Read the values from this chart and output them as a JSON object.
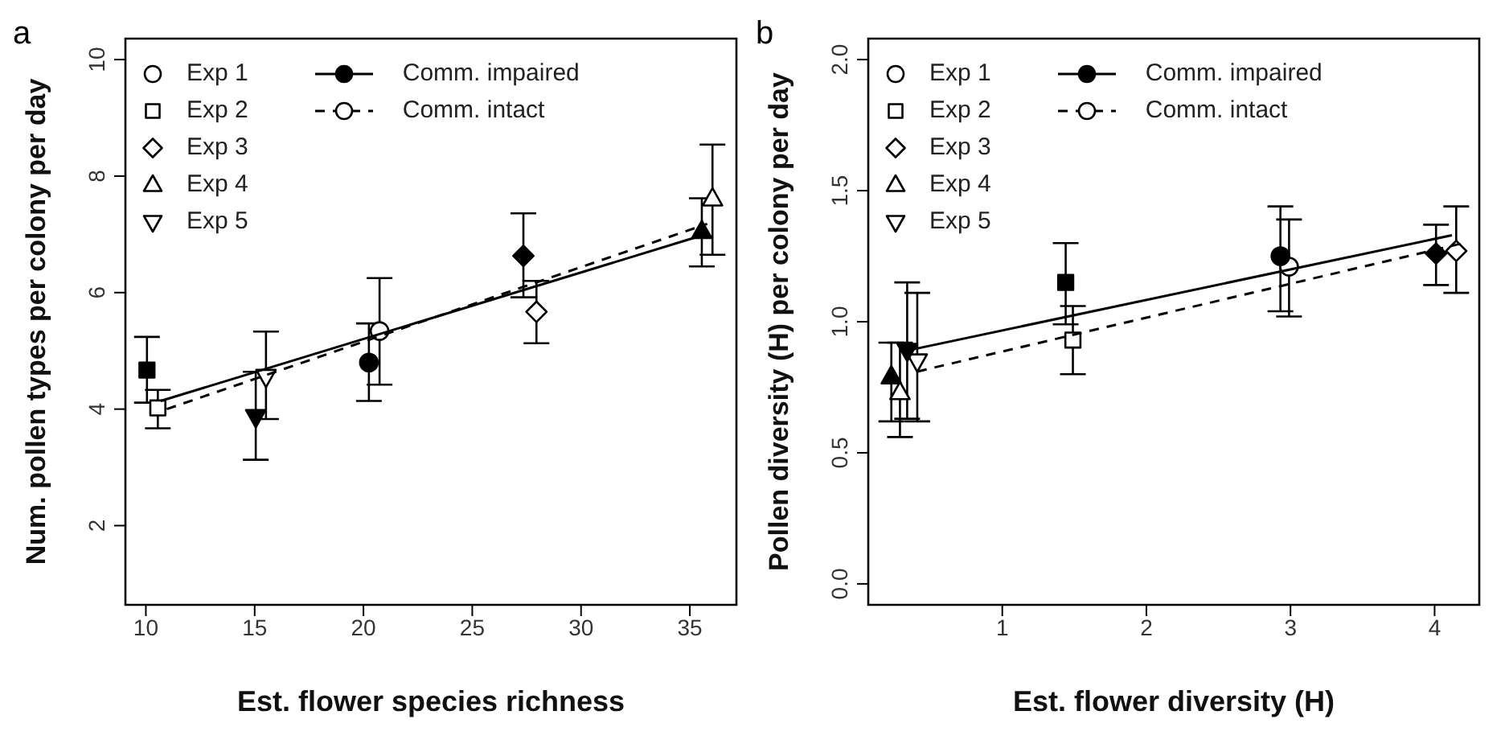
{
  "chart_data": [
    {
      "type": "scatter",
      "title": "a",
      "xlabel": "Est. flower species richness",
      "ylabel": "Num. pollen types per colony per day",
      "xlim": [
        9.06,
        37.14
      ],
      "ylim": [
        0.64,
        10.36
      ],
      "xticks": [
        10,
        15,
        20,
        25,
        30,
        35
      ],
      "yticks": [
        2,
        4,
        6,
        8,
        10
      ],
      "legend": "top",
      "series": [
        {
          "type": "scatter",
          "name": "Exp 1",
          "marker": "circle",
          "color": "#ffffff",
          "x": [
            20.74
          ],
          "values": [
            5.34
          ],
          "errors": [
            [
              4.42,
              6.25
            ]
          ]
        },
        {
          "type": "scatter",
          "name": "Exp 2",
          "marker": "square",
          "color": "#ffffff",
          "x": [
            10.55
          ],
          "values": [
            4.02
          ],
          "errors": [
            [
              3.67,
              4.33
            ]
          ]
        },
        {
          "type": "scatter",
          "name": "Exp 3",
          "marker": "diamond",
          "color": "#ffffff",
          "x": [
            27.95
          ],
          "values": [
            5.67
          ],
          "errors": [
            [
              5.13,
              6.2
            ]
          ]
        },
        {
          "type": "scatter",
          "name": "Exp 4",
          "marker": "triangle",
          "color": "#ffffff",
          "x": [
            36.04
          ],
          "values": [
            7.61
          ],
          "errors": [
            [
              6.65,
              8.54
            ]
          ]
        },
        {
          "type": "scatter",
          "name": "Exp 5",
          "marker": "triangle-down",
          "color": "#ffffff",
          "x": [
            15.52
          ],
          "values": [
            4.56
          ],
          "errors": [
            [
              3.83,
              5.33
            ]
          ]
        },
        {
          "type": "scatter",
          "marker": "circle",
          "color": "#000000",
          "x": [
            20.25
          ],
          "values": [
            4.8
          ],
          "errors": [
            [
              4.14,
              5.47
            ]
          ]
        },
        {
          "type": "scatter",
          "marker": "square",
          "color": "#000000",
          "x": [
            10.05
          ],
          "values": [
            4.67
          ],
          "errors": [
            [
              4.11,
              5.24
            ]
          ]
        },
        {
          "type": "scatter",
          "marker": "diamond",
          "color": "#000000",
          "x": [
            27.35
          ],
          "values": [
            6.63
          ],
          "errors": [
            [
              5.92,
              7.36
            ]
          ]
        },
        {
          "type": "scatter",
          "marker": "triangle",
          "color": "#000000",
          "x": [
            35.55
          ],
          "values": [
            7.05
          ],
          "errors": [
            [
              6.45,
              7.62
            ]
          ]
        },
        {
          "type": "scatter",
          "marker": "triangle-down",
          "color": "#000000",
          "x": [
            15.05
          ],
          "values": [
            3.87
          ],
          "errors": [
            [
              3.13,
              4.64
            ]
          ]
        },
        {
          "type": "line",
          "name": "Comm. impaired",
          "line_style": "solid",
          "color": "#000000",
          "x": [
            10.68,
            35.55
          ],
          "values": [
            4.14,
            6.98
          ]
        },
        {
          "type": "line",
          "name": "Comm. intact",
          "line_style": "dashed",
          "color": "#000000",
          "x": [
            10.96,
            35.8
          ],
          "values": [
            4.0,
            7.18
          ]
        }
      ]
    },
    {
      "type": "scatter",
      "title": "b",
      "xlabel": "Est. flower diversity (H)",
      "ylabel": "Pollen diversity (H) per colony per day",
      "xlim": [
        0.07,
        4.31
      ],
      "ylim": [
        -0.08,
        2.08
      ],
      "xticks": [
        1,
        2,
        3,
        4
      ],
      "yticks": [
        {
          "value": 0,
          "label": "0.0"
        },
        0.5,
        {
          "value": 1,
          "label": "1.0"
        },
        1.5,
        {
          "value": 2,
          "label": "2.0"
        }
      ],
      "legend": "top",
      "series": [
        {
          "type": "scatter",
          "name": "Exp 1",
          "marker": "circle",
          "color": "#ffffff",
          "x": [
            2.99
          ],
          "values": [
            1.21
          ],
          "errors": [
            [
              1.02,
              1.39
            ]
          ]
        },
        {
          "type": "scatter",
          "name": "Exp 2",
          "marker": "square",
          "color": "#ffffff",
          "x": [
            1.49
          ],
          "values": [
            0.93
          ],
          "errors": [
            [
              0.8,
              1.06
            ]
          ]
        },
        {
          "type": "scatter",
          "name": "Exp 3",
          "marker": "diamond",
          "color": "#ffffff",
          "x": [
            4.15
          ],
          "values": [
            1.27
          ],
          "errors": [
            [
              1.11,
              1.44
            ]
          ]
        },
        {
          "type": "scatter",
          "name": "Exp 4",
          "marker": "triangle",
          "color": "#ffffff",
          "x": [
            0.29
          ],
          "values": [
            0.73
          ],
          "errors": [
            [
              0.56,
              0.92
            ]
          ]
        },
        {
          "type": "scatter",
          "name": "Exp 5",
          "marker": "triangle-down",
          "color": "#ffffff",
          "x": [
            0.41
          ],
          "values": [
            0.85
          ],
          "errors": [
            [
              0.62,
              1.11
            ]
          ]
        },
        {
          "type": "scatter",
          "marker": "circle",
          "color": "#000000",
          "x": [
            2.93
          ],
          "values": [
            1.25
          ],
          "errors": [
            [
              1.04,
              1.44
            ]
          ]
        },
        {
          "type": "scatter",
          "marker": "square",
          "color": "#000000",
          "x": [
            1.44
          ],
          "values": [
            1.15
          ],
          "errors": [
            [
              0.99,
              1.3
            ]
          ]
        },
        {
          "type": "scatter",
          "marker": "diamond",
          "color": "#000000",
          "x": [
            4.01
          ],
          "values": [
            1.26
          ],
          "errors": [
            [
              1.14,
              1.37
            ]
          ]
        },
        {
          "type": "scatter",
          "marker": "triangle",
          "color": "#000000",
          "x": [
            0.23
          ],
          "values": [
            0.79
          ],
          "errors": [
            [
              0.62,
              0.92
            ]
          ]
        },
        {
          "type": "scatter",
          "marker": "triangle-down",
          "color": "#000000",
          "x": [
            0.34
          ],
          "values": [
            0.89
          ],
          "errors": [
            [
              0.63,
              1.15
            ]
          ]
        },
        {
          "type": "line",
          "name": "Comm. impaired",
          "line_style": "solid",
          "color": "#000000",
          "x": [
            0.34,
            4.12
          ],
          "values": [
            0.89,
            1.33
          ]
        },
        {
          "type": "line",
          "name": "Comm. intact",
          "line_style": "dashed",
          "color": "#000000",
          "x": [
            0.41,
            4.2
          ],
          "values": [
            0.81,
            1.3
          ]
        }
      ]
    }
  ]
}
